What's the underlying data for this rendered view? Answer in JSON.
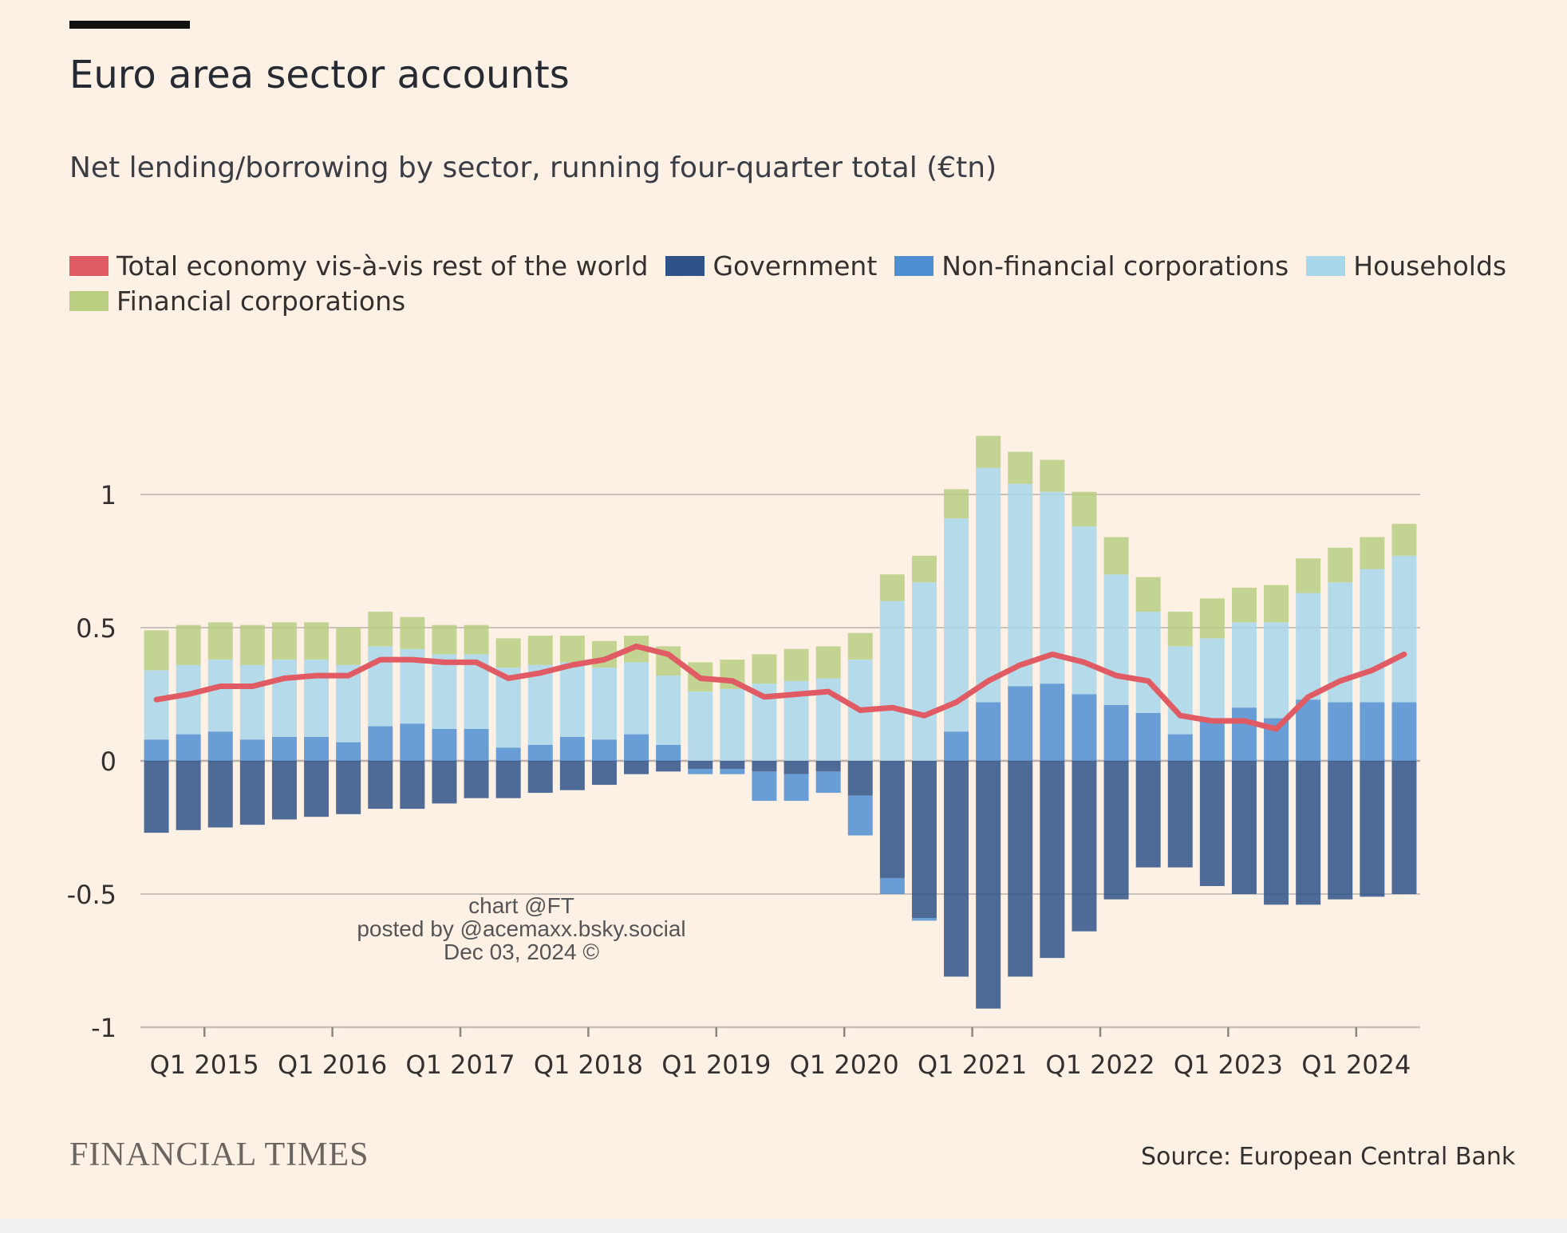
{
  "header": {
    "title": "Euro area sector accounts",
    "subtitle": "Net lending/borrowing by sector, running four-quarter total (€tn)"
  },
  "legend": [
    {
      "label": "Total economy vis-à-vis rest of the world",
      "color": "#e05b63"
    },
    {
      "label": "Government",
      "color": "#2f5388"
    },
    {
      "label": "Non-financial corporations",
      "color": "#4d8fd1"
    },
    {
      "label": "Households",
      "color": "#a8d7ea"
    },
    {
      "label": "Financial corporations",
      "color": "#b9ce81"
    }
  ],
  "watermark": {
    "line1": "chart @FT",
    "line2": "posted by @acemaxx.bsky.social",
    "line3": "Dec 03, 2024 ©"
  },
  "footer": {
    "brand": "FINANCIAL TIMES",
    "source": "Source: European Central Bank"
  },
  "chart_data": {
    "type": "bar",
    "stacked": true,
    "ylim": [
      -1,
      1
    ],
    "yticks": [
      "1",
      "0.5",
      "0",
      "-0.5",
      "-1"
    ],
    "ytick_values": [
      1,
      0.5,
      0,
      -0.5,
      -1
    ],
    "xtick_labels": [
      "Q1 2015",
      "Q1 2016",
      "Q1 2017",
      "Q1 2018",
      "Q1 2019",
      "Q1 2020",
      "Q1 2021",
      "Q1 2022",
      "Q1 2023",
      "Q1 2024"
    ],
    "xtick_positions": [
      2,
      6,
      10,
      14,
      18,
      22,
      26,
      30,
      34,
      38
    ],
    "categories": [
      "Q3 2014",
      "Q4 2014",
      "Q1 2015",
      "Q2 2015",
      "Q3 2015",
      "Q4 2015",
      "Q1 2016",
      "Q2 2016",
      "Q3 2016",
      "Q4 2016",
      "Q1 2017",
      "Q2 2017",
      "Q3 2017",
      "Q4 2017",
      "Q1 2018",
      "Q2 2018",
      "Q3 2018",
      "Q4 2018",
      "Q1 2019",
      "Q2 2019",
      "Q3 2019",
      "Q4 2019",
      "Q1 2020",
      "Q2 2020",
      "Q3 2020",
      "Q4 2020",
      "Q1 2021",
      "Q2 2021",
      "Q3 2021",
      "Q4 2021",
      "Q1 2022",
      "Q2 2022",
      "Q3 2022",
      "Q4 2022",
      "Q1 2023",
      "Q2 2023",
      "Q3 2023",
      "Q4 2023",
      "Q1 2024",
      "Q2 2024"
    ],
    "grid": true,
    "series": [
      {
        "name": "Government",
        "color": "#2f5388",
        "values": [
          -0.27,
          -0.26,
          -0.25,
          -0.24,
          -0.22,
          -0.21,
          -0.2,
          -0.18,
          -0.18,
          -0.16,
          -0.14,
          -0.14,
          -0.12,
          -0.11,
          -0.09,
          -0.05,
          -0.04,
          -0.03,
          -0.03,
          -0.04,
          -0.05,
          -0.04,
          -0.13,
          -0.44,
          -0.59,
          -0.81,
          -0.93,
          -0.81,
          -0.74,
          -0.64,
          -0.52,
          -0.4,
          -0.4,
          -0.47,
          -0.5,
          -0.54,
          -0.54,
          -0.52,
          -0.51,
          -0.5
        ]
      },
      {
        "name": "Non-financial corporations",
        "color": "#4d8fd1",
        "values": [
          0.08,
          0.1,
          0.11,
          0.08,
          0.09,
          0.09,
          0.07,
          0.13,
          0.14,
          0.12,
          0.12,
          0.05,
          0.06,
          0.09,
          0.08,
          0.1,
          0.06,
          -0.02,
          -0.02,
          -0.11,
          -0.1,
          -0.08,
          -0.15,
          -0.06,
          -0.01,
          0.11,
          0.22,
          0.28,
          0.29,
          0.25,
          0.21,
          0.18,
          0.1,
          0.15,
          0.2,
          0.16,
          0.23,
          0.22,
          0.22,
          0.22
        ]
      },
      {
        "name": "Households",
        "color": "#a8d7ea",
        "values": [
          0.26,
          0.26,
          0.27,
          0.28,
          0.29,
          0.29,
          0.29,
          0.3,
          0.28,
          0.28,
          0.28,
          0.3,
          0.3,
          0.28,
          0.27,
          0.27,
          0.26,
          0.26,
          0.27,
          0.29,
          0.3,
          0.31,
          0.38,
          0.6,
          0.67,
          0.8,
          0.88,
          0.76,
          0.72,
          0.63,
          0.49,
          0.38,
          0.33,
          0.31,
          0.32,
          0.36,
          0.4,
          0.45,
          0.5,
          0.55
        ]
      },
      {
        "name": "Financial corporations",
        "color": "#b9ce81",
        "values": [
          0.15,
          0.15,
          0.14,
          0.15,
          0.14,
          0.14,
          0.14,
          0.13,
          0.12,
          0.11,
          0.11,
          0.11,
          0.11,
          0.1,
          0.1,
          0.1,
          0.11,
          0.11,
          0.11,
          0.11,
          0.12,
          0.12,
          0.1,
          0.1,
          0.1,
          0.11,
          0.12,
          0.12,
          0.12,
          0.13,
          0.14,
          0.13,
          0.13,
          0.15,
          0.13,
          0.14,
          0.13,
          0.13,
          0.12,
          0.12
        ]
      }
    ],
    "line": {
      "name": "Total economy vis-à-vis rest of the world",
      "color": "#e05b63",
      "values": [
        0.23,
        0.25,
        0.28,
        0.28,
        0.31,
        0.32,
        0.32,
        0.38,
        0.38,
        0.37,
        0.37,
        0.31,
        0.33,
        0.36,
        0.38,
        0.43,
        0.4,
        0.31,
        0.3,
        0.24,
        0.25,
        0.26,
        0.19,
        0.2,
        0.17,
        0.22,
        0.3,
        0.36,
        0.4,
        0.37,
        0.32,
        0.3,
        0.17,
        0.15,
        0.15,
        0.12,
        0.24,
        0.3,
        0.34,
        0.4
      ]
    }
  }
}
